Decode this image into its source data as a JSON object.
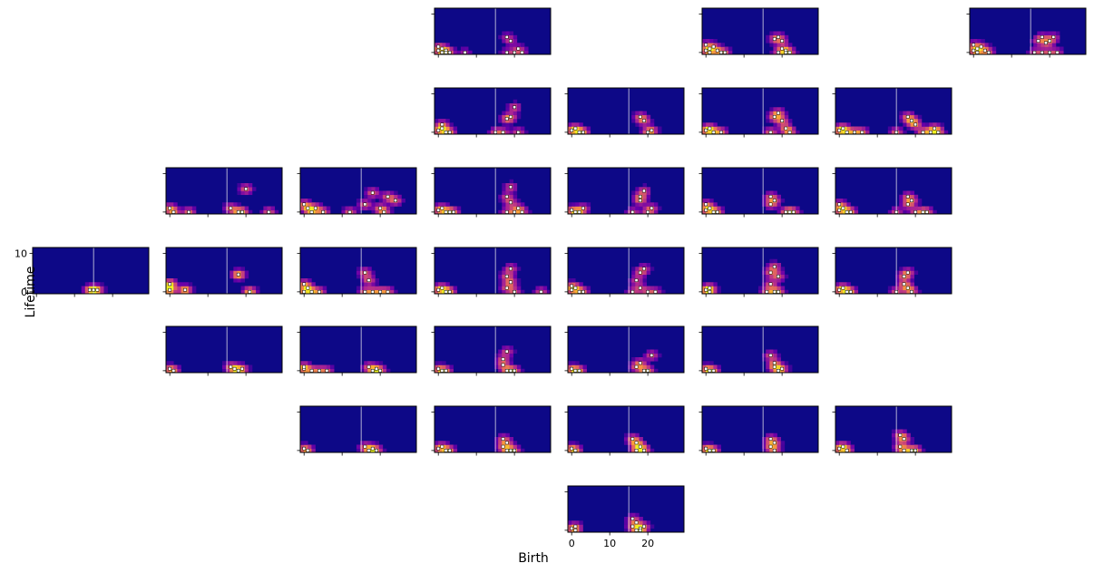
{
  "chart_data": {
    "type": "heatmap",
    "title": "",
    "xlabel": "Birth",
    "ylabel": "Lifetime",
    "xlim": [
      -1,
      29.5
    ],
    "ylim": [
      -0.5,
      11.5
    ],
    "x_ticks": [
      0,
      10,
      20
    ],
    "y_ticks": [
      0,
      10
    ],
    "x_tick_labels": [
      "0",
      "10",
      "20"
    ],
    "y_tick_labels": [
      "0",
      "10"
    ],
    "threshold_line_x": 15,
    "colormap": [
      "#0d0887",
      "#6a00a8",
      "#b12a90",
      "#e16462",
      "#fca636",
      "#f0f921"
    ],
    "point_fill": "#ffffff",
    "point_stroke": "#000000",
    "grid": false,
    "panels": [
      {
        "row": 0,
        "col": 3,
        "points": [
          [
            0,
            0.5
          ],
          [
            0,
            1.5
          ],
          [
            1,
            1
          ],
          [
            1,
            0
          ],
          [
            2,
            0.5
          ],
          [
            2,
            0
          ],
          [
            3,
            0
          ],
          [
            7,
            0
          ],
          [
            18,
            4
          ],
          [
            19,
            3
          ],
          [
            18,
            0
          ],
          [
            20,
            0
          ],
          [
            21,
            1
          ],
          [
            22,
            0
          ]
        ]
      },
      {
        "row": 0,
        "col": 5,
        "points": [
          [
            0,
            0.5
          ],
          [
            0,
            2
          ],
          [
            1,
            1
          ],
          [
            1,
            0
          ],
          [
            2,
            1.5
          ],
          [
            3,
            0.5
          ],
          [
            4,
            0
          ],
          [
            5,
            0
          ],
          [
            18,
            3.5
          ],
          [
            19,
            4
          ],
          [
            20,
            3
          ],
          [
            20,
            1
          ],
          [
            21,
            0.5
          ],
          [
            21,
            0
          ],
          [
            22,
            0
          ],
          [
            19,
            0
          ]
        ]
      },
      {
        "row": 0,
        "col": 7,
        "points": [
          [
            0,
            0.5
          ],
          [
            0,
            2
          ],
          [
            1,
            1
          ],
          [
            1,
            0
          ],
          [
            2,
            1.5
          ],
          [
            3,
            0.5
          ],
          [
            4,
            0
          ],
          [
            17,
            3
          ],
          [
            18,
            4
          ],
          [
            19,
            2.5
          ],
          [
            20,
            3
          ],
          [
            21,
            4
          ],
          [
            16,
            0
          ],
          [
            18,
            0
          ],
          [
            20,
            0
          ],
          [
            22,
            0
          ]
        ]
      },
      {
        "row": 1,
        "col": 3,
        "points": [
          [
            0,
            0.5
          ],
          [
            1,
            1
          ],
          [
            1,
            2
          ],
          [
            2,
            0
          ],
          [
            3,
            0
          ],
          [
            18,
            3.5
          ],
          [
            20,
            6.5
          ],
          [
            19,
            4
          ],
          [
            15,
            0
          ],
          [
            17,
            0
          ],
          [
            21,
            0
          ]
        ]
      },
      {
        "row": 1,
        "col": 4,
        "points": [
          [
            0,
            0.5
          ],
          [
            1,
            1
          ],
          [
            2,
            0
          ],
          [
            3,
            0
          ],
          [
            18,
            4
          ],
          [
            19,
            3
          ],
          [
            20,
            0
          ],
          [
            21,
            0.5
          ]
        ]
      },
      {
        "row": 1,
        "col": 5,
        "points": [
          [
            0,
            0.5
          ],
          [
            1,
            1
          ],
          [
            2,
            0
          ],
          [
            4,
            0
          ],
          [
            18,
            4
          ],
          [
            19,
            5
          ],
          [
            20,
            3
          ],
          [
            17,
            0
          ],
          [
            22,
            0
          ],
          [
            21,
            1
          ]
        ]
      },
      {
        "row": 1,
        "col": 6,
        "points": [
          [
            0,
            0.5
          ],
          [
            1,
            1
          ],
          [
            2,
            0
          ],
          [
            4,
            0
          ],
          [
            6,
            0
          ],
          [
            18,
            4
          ],
          [
            19,
            3
          ],
          [
            20,
            2
          ],
          [
            15,
            0
          ],
          [
            22,
            0
          ],
          [
            24,
            0
          ],
          [
            26,
            0
          ],
          [
            25,
            1
          ]
        ]
      },
      {
        "row": 2,
        "col": 1,
        "points": [
          [
            0,
            1
          ],
          [
            1,
            0
          ],
          [
            5,
            0
          ],
          [
            20,
            6
          ],
          [
            16,
            1
          ],
          [
            18,
            0
          ],
          [
            19,
            0
          ],
          [
            26,
            0
          ]
        ]
      },
      {
        "row": 2,
        "col": 2,
        "points": [
          [
            0,
            2
          ],
          [
            1,
            1
          ],
          [
            2,
            0
          ],
          [
            3,
            1
          ],
          [
            5,
            0
          ],
          [
            16,
            2
          ],
          [
            18,
            5
          ],
          [
            22,
            4
          ],
          [
            24,
            3
          ],
          [
            12,
            0
          ],
          [
            20,
            1
          ],
          [
            21,
            0
          ]
        ]
      },
      {
        "row": 2,
        "col": 3,
        "points": [
          [
            0,
            0.5
          ],
          [
            1,
            1
          ],
          [
            2,
            0
          ],
          [
            3,
            0
          ],
          [
            4,
            0
          ],
          [
            19,
            6.5
          ],
          [
            18,
            4
          ],
          [
            19,
            2.5
          ],
          [
            18,
            0
          ],
          [
            20,
            0
          ],
          [
            22,
            0
          ],
          [
            21,
            1
          ]
        ]
      },
      {
        "row": 2,
        "col": 4,
        "points": [
          [
            0,
            0.5
          ],
          [
            1,
            0
          ],
          [
            2,
            0
          ],
          [
            3,
            1
          ],
          [
            18,
            4
          ],
          [
            19,
            5.5
          ],
          [
            18,
            3
          ],
          [
            16,
            0
          ],
          [
            20,
            0
          ],
          [
            21,
            1
          ]
        ]
      },
      {
        "row": 2,
        "col": 5,
        "points": [
          [
            0,
            0.5
          ],
          [
            0,
            2
          ],
          [
            1,
            1
          ],
          [
            2,
            0
          ],
          [
            3,
            0
          ],
          [
            17,
            4
          ],
          [
            18,
            3
          ],
          [
            17,
            2
          ],
          [
            21,
            0
          ],
          [
            22,
            0
          ],
          [
            23,
            0
          ]
        ]
      },
      {
        "row": 2,
        "col": 6,
        "points": [
          [
            0,
            0.5
          ],
          [
            0,
            2
          ],
          [
            1,
            1
          ],
          [
            2,
            0
          ],
          [
            3,
            0
          ],
          [
            18,
            4
          ],
          [
            19,
            3
          ],
          [
            18,
            2
          ],
          [
            15,
            0
          ],
          [
            20,
            0
          ],
          [
            22,
            0
          ],
          [
            23,
            0
          ]
        ]
      },
      {
        "row": 3,
        "col": 0,
        "points": [
          [
            14,
            0.5
          ],
          [
            15,
            0.5
          ],
          [
            16,
            0.5
          ]
        ]
      },
      {
        "row": 3,
        "col": 1,
        "points": [
          [
            0,
            2
          ],
          [
            0,
            0.5
          ],
          [
            4,
            0.5
          ],
          [
            18,
            4.5
          ],
          [
            21,
            0
          ]
        ]
      },
      {
        "row": 3,
        "col": 2,
        "points": [
          [
            0,
            2
          ],
          [
            0,
            0
          ],
          [
            1,
            1
          ],
          [
            2,
            0
          ],
          [
            4,
            0
          ],
          [
            16,
            5
          ],
          [
            17,
            3
          ],
          [
            16,
            0
          ],
          [
            18,
            0
          ],
          [
            20,
            0
          ],
          [
            22,
            0
          ]
        ]
      },
      {
        "row": 3,
        "col": 3,
        "points": [
          [
            0,
            0.5
          ],
          [
            1,
            1
          ],
          [
            2,
            0
          ],
          [
            3,
            0
          ],
          [
            19,
            6
          ],
          [
            18,
            4
          ],
          [
            19,
            2.5
          ],
          [
            18,
            1
          ],
          [
            20,
            0
          ],
          [
            27,
            0
          ]
        ]
      },
      {
        "row": 3,
        "col": 4,
        "points": [
          [
            0,
            0.5
          ],
          [
            0,
            1.5
          ],
          [
            1,
            1
          ],
          [
            2,
            0
          ],
          [
            3,
            0
          ],
          [
            18,
            5
          ],
          [
            19,
            6
          ],
          [
            17,
            3
          ],
          [
            18,
            1
          ],
          [
            16,
            0
          ],
          [
            20,
            0
          ],
          [
            22,
            0
          ]
        ]
      },
      {
        "row": 3,
        "col": 5,
        "points": [
          [
            0,
            0.5
          ],
          [
            1,
            1
          ],
          [
            1,
            0
          ],
          [
            17,
            5
          ],
          [
            18,
            6.5
          ],
          [
            19,
            4
          ],
          [
            17,
            2
          ],
          [
            16,
            0
          ],
          [
            18,
            0
          ],
          [
            19,
            0
          ]
        ]
      },
      {
        "row": 3,
        "col": 6,
        "points": [
          [
            0,
            0.5
          ],
          [
            1,
            1
          ],
          [
            2,
            0
          ],
          [
            3,
            0
          ],
          [
            17,
            4
          ],
          [
            18,
            5
          ],
          [
            17,
            2
          ],
          [
            18,
            1
          ],
          [
            15,
            0
          ],
          [
            19,
            0
          ]
        ]
      },
      {
        "row": 4,
        "col": 1,
        "points": [
          [
            0,
            0.5
          ],
          [
            1,
            0
          ],
          [
            16,
            1
          ],
          [
            17,
            0.5
          ],
          [
            18,
            0
          ],
          [
            19,
            0.5
          ]
        ]
      },
      {
        "row": 4,
        "col": 2,
        "points": [
          [
            0,
            0.5
          ],
          [
            0,
            1
          ],
          [
            2,
            0
          ],
          [
            4,
            0
          ],
          [
            6,
            0
          ],
          [
            17,
            1
          ],
          [
            18,
            0
          ],
          [
            19,
            0.5
          ],
          [
            20,
            0
          ]
        ]
      },
      {
        "row": 4,
        "col": 3,
        "points": [
          [
            0,
            0.5
          ],
          [
            1,
            0
          ],
          [
            2,
            0
          ],
          [
            17,
            3
          ],
          [
            18,
            5
          ],
          [
            17,
            1.5
          ],
          [
            18,
            0
          ],
          [
            19,
            0
          ],
          [
            20,
            0
          ]
        ]
      },
      {
        "row": 4,
        "col": 4,
        "points": [
          [
            0,
            0.5
          ],
          [
            1,
            0
          ],
          [
            2,
            0
          ],
          [
            18,
            2
          ],
          [
            21,
            4
          ],
          [
            17,
            1
          ],
          [
            19,
            0
          ],
          [
            20,
            0
          ]
        ]
      },
      {
        "row": 4,
        "col": 5,
        "points": [
          [
            0,
            0.5
          ],
          [
            1,
            0
          ],
          [
            2,
            0
          ],
          [
            17,
            4
          ],
          [
            18,
            2
          ],
          [
            18,
            1
          ],
          [
            19,
            0
          ],
          [
            20,
            0.5
          ]
        ]
      },
      {
        "row": 5,
        "col": 2,
        "points": [
          [
            0,
            0.5
          ],
          [
            1,
            0
          ],
          [
            16,
            1
          ],
          [
            17,
            0
          ],
          [
            18,
            0.5
          ],
          [
            19,
            0
          ]
        ]
      },
      {
        "row": 5,
        "col": 3,
        "points": [
          [
            0,
            0.5
          ],
          [
            1,
            1
          ],
          [
            2,
            0
          ],
          [
            3,
            0
          ],
          [
            17,
            3
          ],
          [
            18,
            2
          ],
          [
            17,
            1
          ],
          [
            18,
            0
          ],
          [
            19,
            0
          ],
          [
            20,
            0
          ]
        ]
      },
      {
        "row": 5,
        "col": 4,
        "points": [
          [
            0,
            0.5
          ],
          [
            1,
            0
          ],
          [
            16,
            3
          ],
          [
            17,
            2
          ],
          [
            18,
            1
          ],
          [
            17,
            0
          ],
          [
            19,
            0
          ]
        ]
      },
      {
        "row": 5,
        "col": 5,
        "points": [
          [
            0,
            0.5
          ],
          [
            1,
            0
          ],
          [
            2,
            0
          ],
          [
            17,
            3
          ],
          [
            18,
            2
          ],
          [
            17,
            1
          ],
          [
            18,
            0
          ]
        ]
      },
      {
        "row": 5,
        "col": 6,
        "points": [
          [
            0,
            0.5
          ],
          [
            1,
            1
          ],
          [
            2,
            0
          ],
          [
            16,
            4
          ],
          [
            17,
            3
          ],
          [
            16,
            1
          ],
          [
            17,
            0
          ],
          [
            19,
            0
          ],
          [
            20,
            0
          ]
        ]
      },
      {
        "row": 6,
        "col": 4,
        "points": [
          [
            0,
            0.5
          ],
          [
            1,
            1
          ],
          [
            1,
            0
          ],
          [
            16,
            3
          ],
          [
            17,
            2
          ],
          [
            16,
            1
          ],
          [
            17,
            0
          ],
          [
            18,
            0.5
          ],
          [
            19,
            1
          ],
          [
            18,
            0
          ]
        ]
      }
    ]
  }
}
